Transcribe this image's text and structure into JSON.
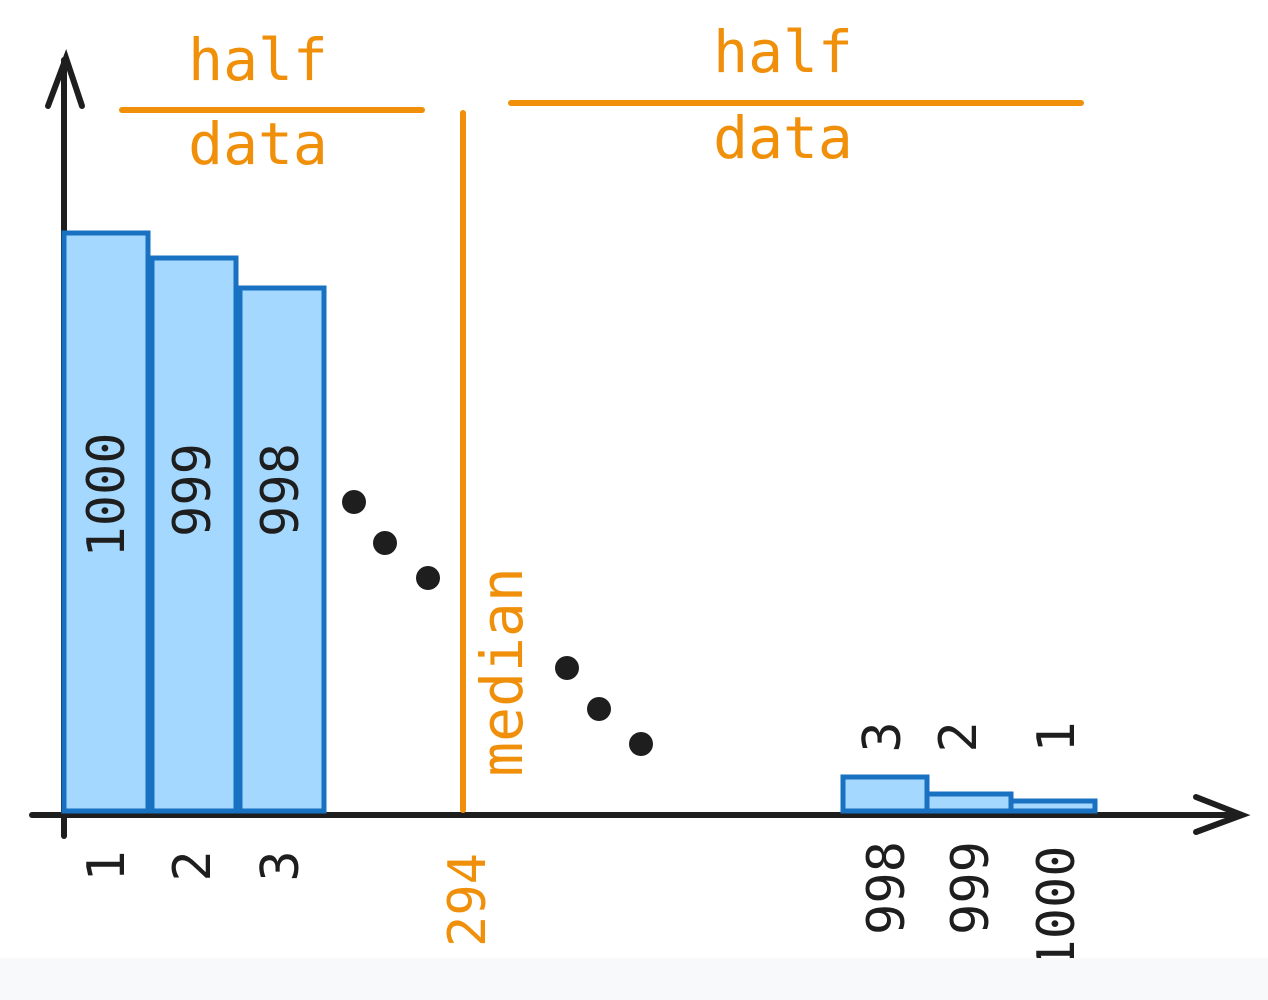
{
  "labels": {
    "left_half_top": "half",
    "left_half_bottom": "data",
    "right_half_top": "half",
    "right_half_bottom": "data",
    "median": "median",
    "median_tick": "294"
  },
  "colors": {
    "accent": "#f0900a",
    "bar_fill": "#a5d8ff",
    "bar_stroke": "#1971c2",
    "ink": "#1e1e1e"
  },
  "left_bars": [
    {
      "tick": "1",
      "label": "1000"
    },
    {
      "tick": "2",
      "label": "999"
    },
    {
      "tick": "3",
      "label": "998"
    }
  ],
  "right_bars": [
    {
      "tick": "998",
      "label": "3"
    },
    {
      "tick": "999",
      "label": "2"
    },
    {
      "tick": "1000",
      "label": "1"
    }
  ]
}
